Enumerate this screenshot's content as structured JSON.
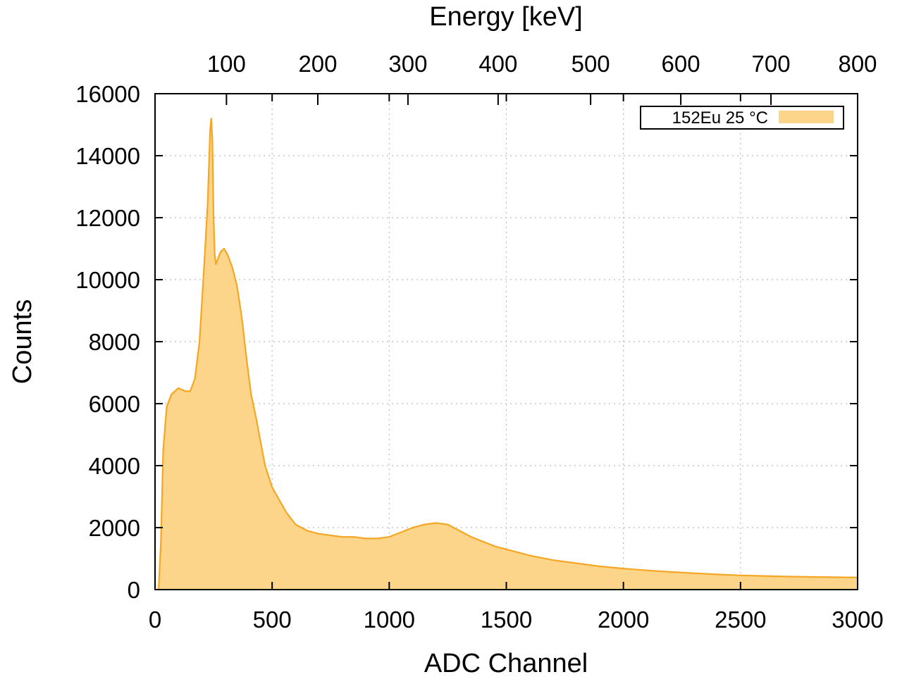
{
  "chart_data": {
    "type": "area",
    "xlabel": "ADC Channel",
    "ylabel": "Counts",
    "x2label": "Energy [keV]",
    "xlim": [
      0,
      3000
    ],
    "ylim": [
      0,
      16000
    ],
    "x_ticks": [
      0,
      500,
      1000,
      1500,
      2000,
      2500,
      3000
    ],
    "x_tick_labels": [
      "0",
      "500",
      "1000",
      "1500",
      "2000",
      "2500",
      "3000"
    ],
    "y_ticks": [
      0,
      2000,
      4000,
      6000,
      8000,
      10000,
      12000,
      14000,
      16000
    ],
    "y_tick_labels": [
      "0",
      "2000",
      "4000",
      "6000",
      "8000",
      "10000",
      "12000",
      "14000",
      "16000"
    ],
    "x2_ticks_channel": [
      305,
      695,
      1080,
      1465,
      1860,
      2245,
      2630,
      3000
    ],
    "x2_tick_labels": [
      "100",
      "200",
      "300",
      "400",
      "500",
      "600",
      "700",
      "800"
    ],
    "grid": true,
    "legend_position": "top-right",
    "series": [
      {
        "name": "152Eu 25 °C",
        "color": "#f5a623",
        "fill": "#fcd58a",
        "x": [
          15,
          25,
          35,
          50,
          70,
          100,
          130,
          150,
          170,
          190,
          210,
          225,
          235,
          240,
          245,
          250,
          255,
          260,
          270,
          280,
          295,
          310,
          320,
          330,
          350,
          370,
          390,
          410,
          430,
          450,
          470,
          500,
          530,
          560,
          600,
          650,
          700,
          750,
          800,
          850,
          900,
          950,
          1000,
          1050,
          1100,
          1150,
          1200,
          1250,
          1300,
          1350,
          1400,
          1450,
          1500,
          1600,
          1700,
          1800,
          1900,
          2000,
          2100,
          2200,
          2300,
          2400,
          2500,
          2600,
          2700,
          2800,
          2900,
          3000
        ],
        "y": [
          0,
          1500,
          4500,
          5900,
          6300,
          6500,
          6400,
          6400,
          6800,
          8000,
          10500,
          12500,
          14800,
          15200,
          14500,
          12000,
          10800,
          10500,
          10700,
          10900,
          11000,
          10800,
          10600,
          10400,
          9800,
          8800,
          7500,
          6300,
          5600,
          4800,
          4000,
          3300,
          2900,
          2500,
          2100,
          1900,
          1800,
          1750,
          1700,
          1700,
          1650,
          1650,
          1700,
          1850,
          2000,
          2100,
          2150,
          2100,
          1900,
          1700,
          1550,
          1400,
          1300,
          1100,
          950,
          850,
          750,
          680,
          620,
          570,
          530,
          490,
          460,
          440,
          420,
          410,
          400,
          390
        ]
      }
    ]
  }
}
